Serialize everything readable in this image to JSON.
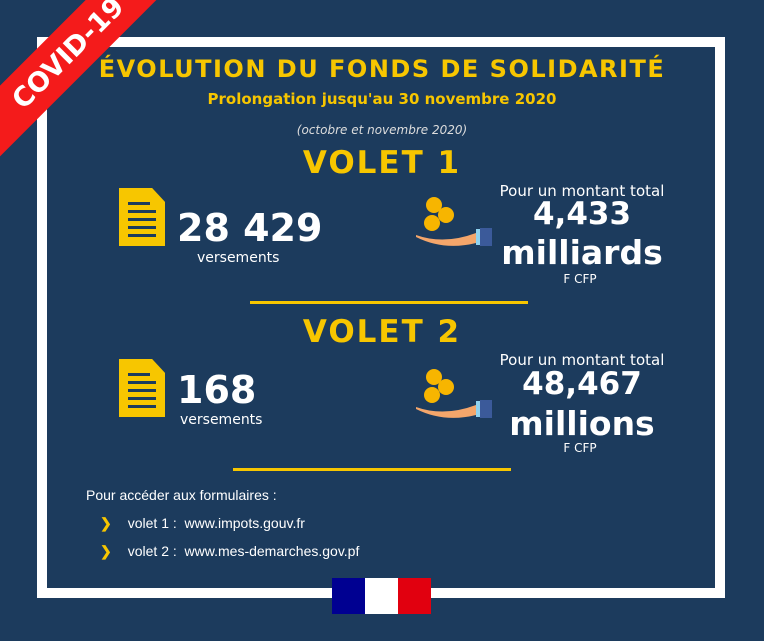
{
  "badge": "COVID-19",
  "title": "ÉVOLUTION DU FONDS DE SOLIDARITÉ",
  "subtitle": "Prolongation jusqu'au 30 novembre 2020",
  "period": "(octobre et novembre 2020)",
  "volets": [
    {
      "label": "VOLET 1",
      "count": "28 429",
      "count_label": "versements",
      "amount_intro": "Pour un montant total",
      "amount": "4,433",
      "amount_unit": "milliards",
      "currency": "F CFP"
    },
    {
      "label": "VOLET 2",
      "count": "168",
      "count_label": "versements",
      "amount_intro": "Pour un montant total",
      "amount": "48,467",
      "amount_unit": "millions",
      "currency": "F CFP"
    }
  ],
  "links": {
    "intro": "Pour accéder aux formulaires :",
    "items": [
      {
        "label": "volet 1 :",
        "url": "www.impots.gouv.fr"
      },
      {
        "label": "volet 2 :",
        "url": "www.mes-demarches.gov.pf"
      }
    ]
  },
  "colors": {
    "background": "#1c3b5d",
    "accent": "#f7c600",
    "ribbon": "#f41b1b"
  }
}
